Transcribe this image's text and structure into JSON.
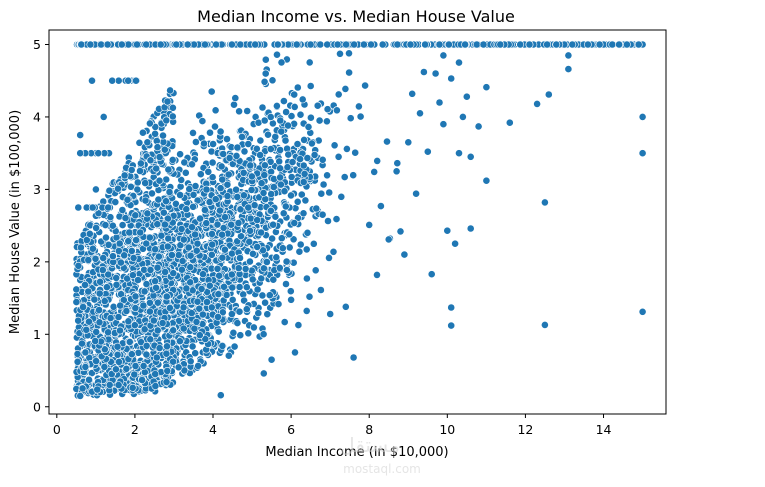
{
  "chart_data": {
    "type": "scatter",
    "title": "Median Income vs. Median House Value",
    "xlabel": "Median Income (in $10,000)",
    "ylabel": "Median House Value (in $100,000)",
    "xlim": [
      -0.2,
      15.6
    ],
    "ylim": [
      -0.1,
      5.2
    ],
    "xticks": [
      0,
      2,
      4,
      6,
      8,
      10,
      12,
      14
    ],
    "yticks": [
      0,
      1,
      2,
      3,
      4,
      5
    ],
    "grid": false,
    "legend": "none",
    "point_color": "#1f77b4",
    "edge_color": "#ffffff",
    "outliers": [
      {
        "x": 15.0,
        "y": 5.0
      },
      {
        "x": 15.0,
        "y": 4.0
      },
      {
        "x": 15.0,
        "y": 3.5
      },
      {
        "x": 15.0,
        "y": 1.31
      },
      {
        "x": 14.9,
        "y": 5.0
      },
      {
        "x": 14.6,
        "y": 5.0
      },
      {
        "x": 14.4,
        "y": 5.0
      },
      {
        "x": 13.9,
        "y": 5.0
      },
      {
        "x": 13.6,
        "y": 5.0
      },
      {
        "x": 13.2,
        "y": 5.0
      },
      {
        "x": 13.1,
        "y": 4.85
      },
      {
        "x": 13.1,
        "y": 4.66
      },
      {
        "x": 12.6,
        "y": 4.31
      },
      {
        "x": 12.3,
        "y": 4.18
      },
      {
        "x": 12.5,
        "y": 2.82
      },
      {
        "x": 12.5,
        "y": 1.13
      },
      {
        "x": 11.6,
        "y": 3.92
      },
      {
        "x": 11.0,
        "y": 3.12
      },
      {
        "x": 11.0,
        "y": 4.41
      },
      {
        "x": 10.6,
        "y": 2.46
      },
      {
        "x": 10.2,
        "y": 2.25
      },
      {
        "x": 10.1,
        "y": 1.37
      },
      {
        "x": 10.1,
        "y": 1.12
      },
      {
        "x": 10.0,
        "y": 2.43
      },
      {
        "x": 9.6,
        "y": 1.83
      },
      {
        "x": 9.2,
        "y": 2.94
      },
      {
        "x": 10.6,
        "y": 3.45
      },
      {
        "x": 10.3,
        "y": 3.5
      },
      {
        "x": 10.8,
        "y": 3.87
      },
      {
        "x": 9.9,
        "y": 3.9
      },
      {
        "x": 9.5,
        "y": 3.52
      },
      {
        "x": 10.4,
        "y": 4.0
      },
      {
        "x": 10.5,
        "y": 4.28
      },
      {
        "x": 10.1,
        "y": 4.53
      },
      {
        "x": 9.7,
        "y": 4.6
      },
      {
        "x": 10.3,
        "y": 4.75
      },
      {
        "x": 9.9,
        "y": 4.85
      },
      {
        "x": 7.6,
        "y": 0.68
      },
      {
        "x": 6.1,
        "y": 0.75
      },
      {
        "x": 5.5,
        "y": 0.65
      },
      {
        "x": 5.3,
        "y": 0.46
      },
      {
        "x": 4.2,
        "y": 0.16
      },
      {
        "x": 0.6,
        "y": 0.15
      },
      {
        "x": 0.5,
        "y": 1.62
      },
      {
        "x": 0.55,
        "y": 2.75
      },
      {
        "x": 0.6,
        "y": 3.5
      },
      {
        "x": 0.6,
        "y": 3.75
      },
      {
        "x": 0.9,
        "y": 4.5
      },
      {
        "x": 1.0,
        "y": 3.0
      },
      {
        "x": 1.2,
        "y": 4.0
      },
      {
        "x": 7.0,
        "y": 1.28
      },
      {
        "x": 7.4,
        "y": 1.38
      },
      {
        "x": 8.2,
        "y": 1.82
      },
      {
        "x": 8.5,
        "y": 2.31
      },
      {
        "x": 8.9,
        "y": 2.1
      },
      {
        "x": 8.8,
        "y": 2.42
      },
      {
        "x": 8.0,
        "y": 2.51
      },
      {
        "x": 8.3,
        "y": 2.77
      },
      {
        "x": 8.7,
        "y": 3.25
      },
      {
        "x": 9.0,
        "y": 3.65
      },
      {
        "x": 9.3,
        "y": 4.05
      },
      {
        "x": 9.1,
        "y": 4.32
      },
      {
        "x": 9.4,
        "y": 4.62
      },
      {
        "x": 9.8,
        "y": 4.2
      }
    ],
    "cap_line": {
      "y": 5.0,
      "x_range": [
        0.5,
        15.0
      ]
    },
    "dense_region": {
      "description_x": [
        0.5,
        9.0
      ],
      "y_range": [
        0.15,
        5.0
      ]
    }
  },
  "watermark": {
    "text_top": "مستقل",
    "text_bottom": "mostaql.com"
  }
}
